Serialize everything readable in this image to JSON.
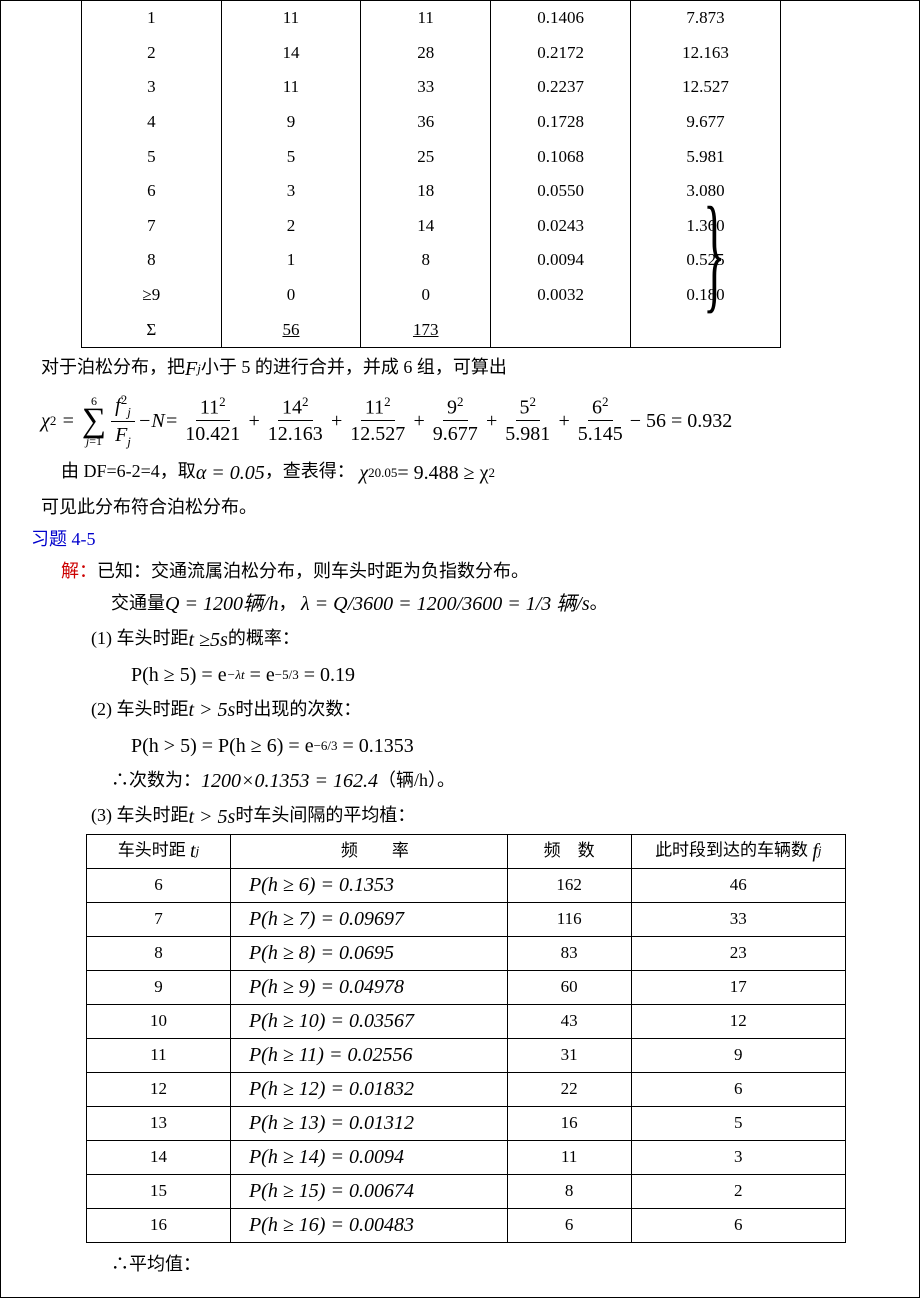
{
  "table1": {
    "rows": [
      {
        "k": "1",
        "f": "11",
        "kf": "11",
        "p": "0.1406",
        "F": "7.873",
        "bold": true
      },
      {
        "k": "2",
        "f": "14",
        "kf": "28",
        "p": "0.2172",
        "F": "12.163",
        "bold": false
      },
      {
        "k": "3",
        "f": "11",
        "kf": "33",
        "p": "0.2237",
        "F": "12.527",
        "bold": false
      },
      {
        "k": "4",
        "f": "9",
        "kf": "36",
        "p": "0.1728",
        "F": "9.677",
        "bold": false
      },
      {
        "k": "5",
        "f": "5",
        "kf": "25",
        "p": "0.1068",
        "F": "5.981",
        "bold": false
      },
      {
        "k": "6",
        "f": "3",
        "kf": "18",
        "p": "0.0550",
        "F": "3.080",
        "bold": true
      },
      {
        "k": "7",
        "f": "2",
        "kf": "14",
        "p": "0.0243",
        "F": "1.360",
        "bold": true
      },
      {
        "k": "8",
        "f": "1",
        "kf": "8",
        "p": "0.0094",
        "F": "0.525",
        "bold": true
      },
      {
        "k": "≥9",
        "f": "0",
        "kf": "0",
        "p": "0.0032",
        "F": "0.180",
        "bold": true
      }
    ],
    "sum_label": "Σ",
    "sum_f": "56",
    "sum_kf": "173"
  },
  "text": {
    "merge_text": "对于泊松分布，把",
    "merge_text2": "小于 5 的进行合并，并成 6 组，可算出",
    "chi_result": "− 56 = 0.932",
    "chi_terms": {
      "n1": "11",
      "d1": "10.421",
      "n2": "14",
      "d2": "12.163",
      "n3": "11",
      "d3": "12.527",
      "n4": "9",
      "d4": "9.677",
      "n5": "5",
      "d5": "5.981",
      "n6": "6",
      "d6": "5.145"
    },
    "df_text": "由 DF=6-2=4，取",
    "alpha_eq": "α = 0.05",
    "df_text2": "，查表得：",
    "chi_crit": "= 9.488 ≥ χ",
    "conclude": "可见此分布符合泊松分布。",
    "ex_label": "习题 4-5",
    "sol_label": "解：",
    "sol_text": "已知：交通流属泊松分布，则车头时距为负指数分布。",
    "q_text1": "交通量",
    "q_eq1": "Q = 1200辆/h",
    "q_text2": "，",
    "q_eq2": "λ = Q/3600 = 1200/3600 = 1/3 辆/s",
    "q_text3": "。",
    "item1": "(1) 车头时距",
    "item1b": "的概率：",
    "p1_eq": "P(h ≥ 5) = e",
    "p1_mid": "= e",
    "p1_end": "= 0.19",
    "exp1": "−λt",
    "exp2": "−5/3",
    "item2": "(2) 车头时距",
    "item2b": "时出现的次数：",
    "p2_eq": "P(h > 5) = P(h ≥ 6) = e",
    "p2_exp": "−6/3",
    "p2_end": "= 0.1353",
    "therefore": "∴次数为：",
    "count_eq": "1200×0.1353 = 162.4",
    "count_unit": "（辆/h）。",
    "item3": "(3) 车头时距",
    "item3b": "时车头间隔的平均植：",
    "t5s": "t ≥5s",
    "tg5s": "t > 5s",
    "avg": "∴平均值："
  },
  "table2": {
    "h1": "车头时距",
    "h1v": "t",
    "h1s": "j",
    "h2": "频　　率",
    "h3": "频　数",
    "h4": "此时段到达的车辆数",
    "h4v": "f",
    "h4s": "j",
    "rows": [
      {
        "t": "6",
        "p": "P(h ≥ 6) = 0.1353",
        "n": "162",
        "f": "46"
      },
      {
        "t": "7",
        "p": "P(h ≥ 7) = 0.09697",
        "n": "116",
        "f": "33"
      },
      {
        "t": "8",
        "p": "P(h ≥ 8) = 0.0695",
        "n": "83",
        "f": "23"
      },
      {
        "t": "9",
        "p": "P(h ≥ 9) = 0.04978",
        "n": "60",
        "f": "17"
      },
      {
        "t": "10",
        "p": "P(h ≥ 10) = 0.03567",
        "n": "43",
        "f": "12"
      },
      {
        "t": "11",
        "p": "P(h ≥ 11) = 0.02556",
        "n": "31",
        "f": "9"
      },
      {
        "t": "12",
        "p": "P(h ≥ 12) = 0.01832",
        "n": "22",
        "f": "6"
      },
      {
        "t": "13",
        "p": "P(h ≥ 13) = 0.01312",
        "n": "16",
        "f": "5"
      },
      {
        "t": "14",
        "p": "P(h ≥ 14) = 0.0094",
        "n": "11",
        "f": "3"
      },
      {
        "t": "15",
        "p": "P(h ≥ 15) = 0.00674",
        "n": "8",
        "f": "2"
      },
      {
        "t": "16",
        "p": "P(h ≥ 16) = 0.00483",
        "n": "6",
        "f": "6"
      }
    ]
  }
}
